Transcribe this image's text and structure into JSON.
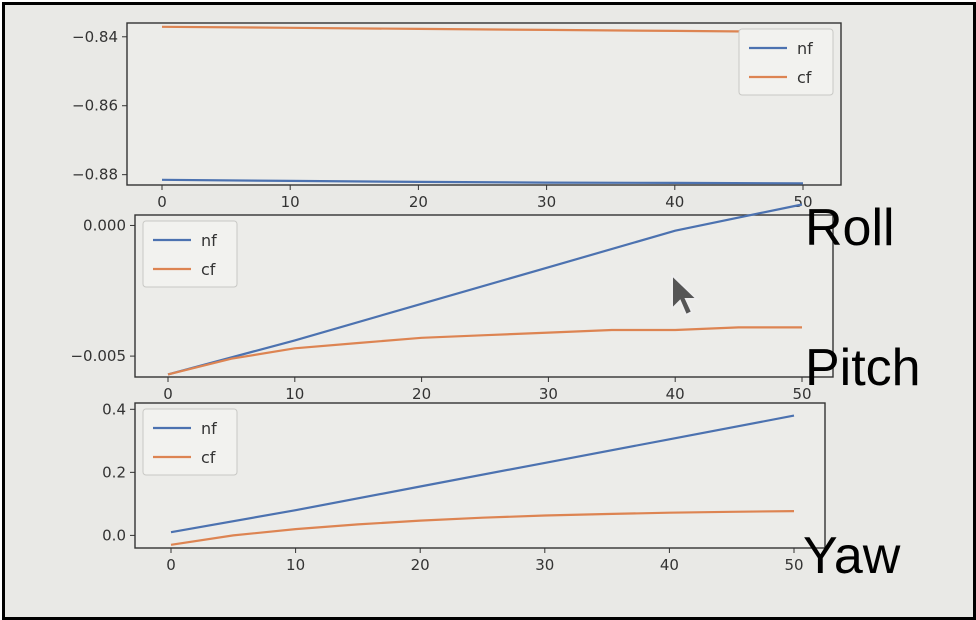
{
  "colors": {
    "nf": "#4c72b0",
    "cf": "#dd8452",
    "axes": "#333333",
    "background": "#e9e9e6"
  },
  "annotations": {
    "roll": "Roll",
    "pitch": "Pitch",
    "yaw": "Yaw"
  },
  "chart_data": [
    {
      "type": "line",
      "title": "",
      "xlabel": "",
      "ylabel": "",
      "xlim": [
        0,
        50
      ],
      "ylim": [
        -0.883,
        -0.836
      ],
      "xticks": [
        0,
        10,
        20,
        30,
        40,
        50
      ],
      "xtick_labels": [
        "0",
        "10",
        "20",
        "30",
        "40",
        "50"
      ],
      "yticks": [
        -0.84,
        -0.86,
        -0.88
      ],
      "ytick_labels": [
        "−0.84",
        "−0.86",
        "−0.88"
      ],
      "legend_position": "top-right",
      "series": [
        {
          "name": "nf",
          "color": "#4c72b0",
          "x": [
            0,
            10,
            20,
            30,
            40,
            50
          ],
          "y": [
            -0.8815,
            -0.8818,
            -0.8821,
            -0.8823,
            -0.8824,
            -0.8825
          ]
        },
        {
          "name": "cf",
          "color": "#dd8452",
          "x": [
            0,
            10,
            20,
            30,
            40,
            50
          ],
          "y": [
            -0.8371,
            -0.8374,
            -0.8377,
            -0.838,
            -0.8383,
            -0.8386
          ]
        }
      ]
    },
    {
      "type": "line",
      "title": "",
      "xlabel": "",
      "ylabel": "",
      "xlim": [
        0,
        50
      ],
      "ylim": [
        -0.0058,
        0.0004
      ],
      "xticks": [
        0,
        10,
        20,
        30,
        40,
        50
      ],
      "xtick_labels": [
        "0",
        "10",
        "20",
        "30",
        "40",
        "50"
      ],
      "yticks": [
        0.0,
        -0.005
      ],
      "ytick_labels": [
        "0.000",
        "−0.005"
      ],
      "legend_position": "top-left",
      "series": [
        {
          "name": "nf",
          "color": "#4c72b0",
          "x": [
            0,
            10,
            20,
            30,
            40,
            50
          ],
          "y": [
            -0.0057,
            -0.0044,
            -0.003,
            -0.0016,
            -0.0002,
            0.0008
          ]
        },
        {
          "name": "cf",
          "color": "#dd8452",
          "x": [
            0,
            5,
            10,
            15,
            20,
            25,
            30,
            35,
            40,
            45,
            50
          ],
          "y": [
            -0.0057,
            -0.0051,
            -0.0047,
            -0.0045,
            -0.0043,
            -0.0042,
            -0.0041,
            -0.004,
            -0.004,
            -0.0039,
            -0.0039
          ]
        }
      ]
    },
    {
      "type": "line",
      "title": "",
      "xlabel": "",
      "ylabel": "",
      "xlim": [
        0,
        50
      ],
      "ylim": [
        -0.04,
        0.42
      ],
      "xticks": [
        0,
        10,
        20,
        30,
        40,
        50
      ],
      "xtick_labels": [
        "0",
        "10",
        "20",
        "30",
        "40",
        "50"
      ],
      "yticks": [
        0.4,
        0.2,
        0.0
      ],
      "ytick_labels": [
        "0.4",
        "0.2",
        "0.0"
      ],
      "legend_position": "top-left",
      "series": [
        {
          "name": "nf",
          "color": "#4c72b0",
          "x": [
            0,
            10,
            20,
            30,
            40,
            50
          ],
          "y": [
            0.01,
            0.08,
            0.155,
            0.23,
            0.305,
            0.38
          ]
        },
        {
          "name": "cf",
          "color": "#dd8452",
          "x": [
            0,
            5,
            10,
            15,
            20,
            25,
            30,
            35,
            40,
            45,
            50
          ],
          "y": [
            -0.03,
            0.0,
            0.02,
            0.035,
            0.047,
            0.056,
            0.063,
            0.068,
            0.072,
            0.075,
            0.077
          ]
        }
      ]
    }
  ]
}
